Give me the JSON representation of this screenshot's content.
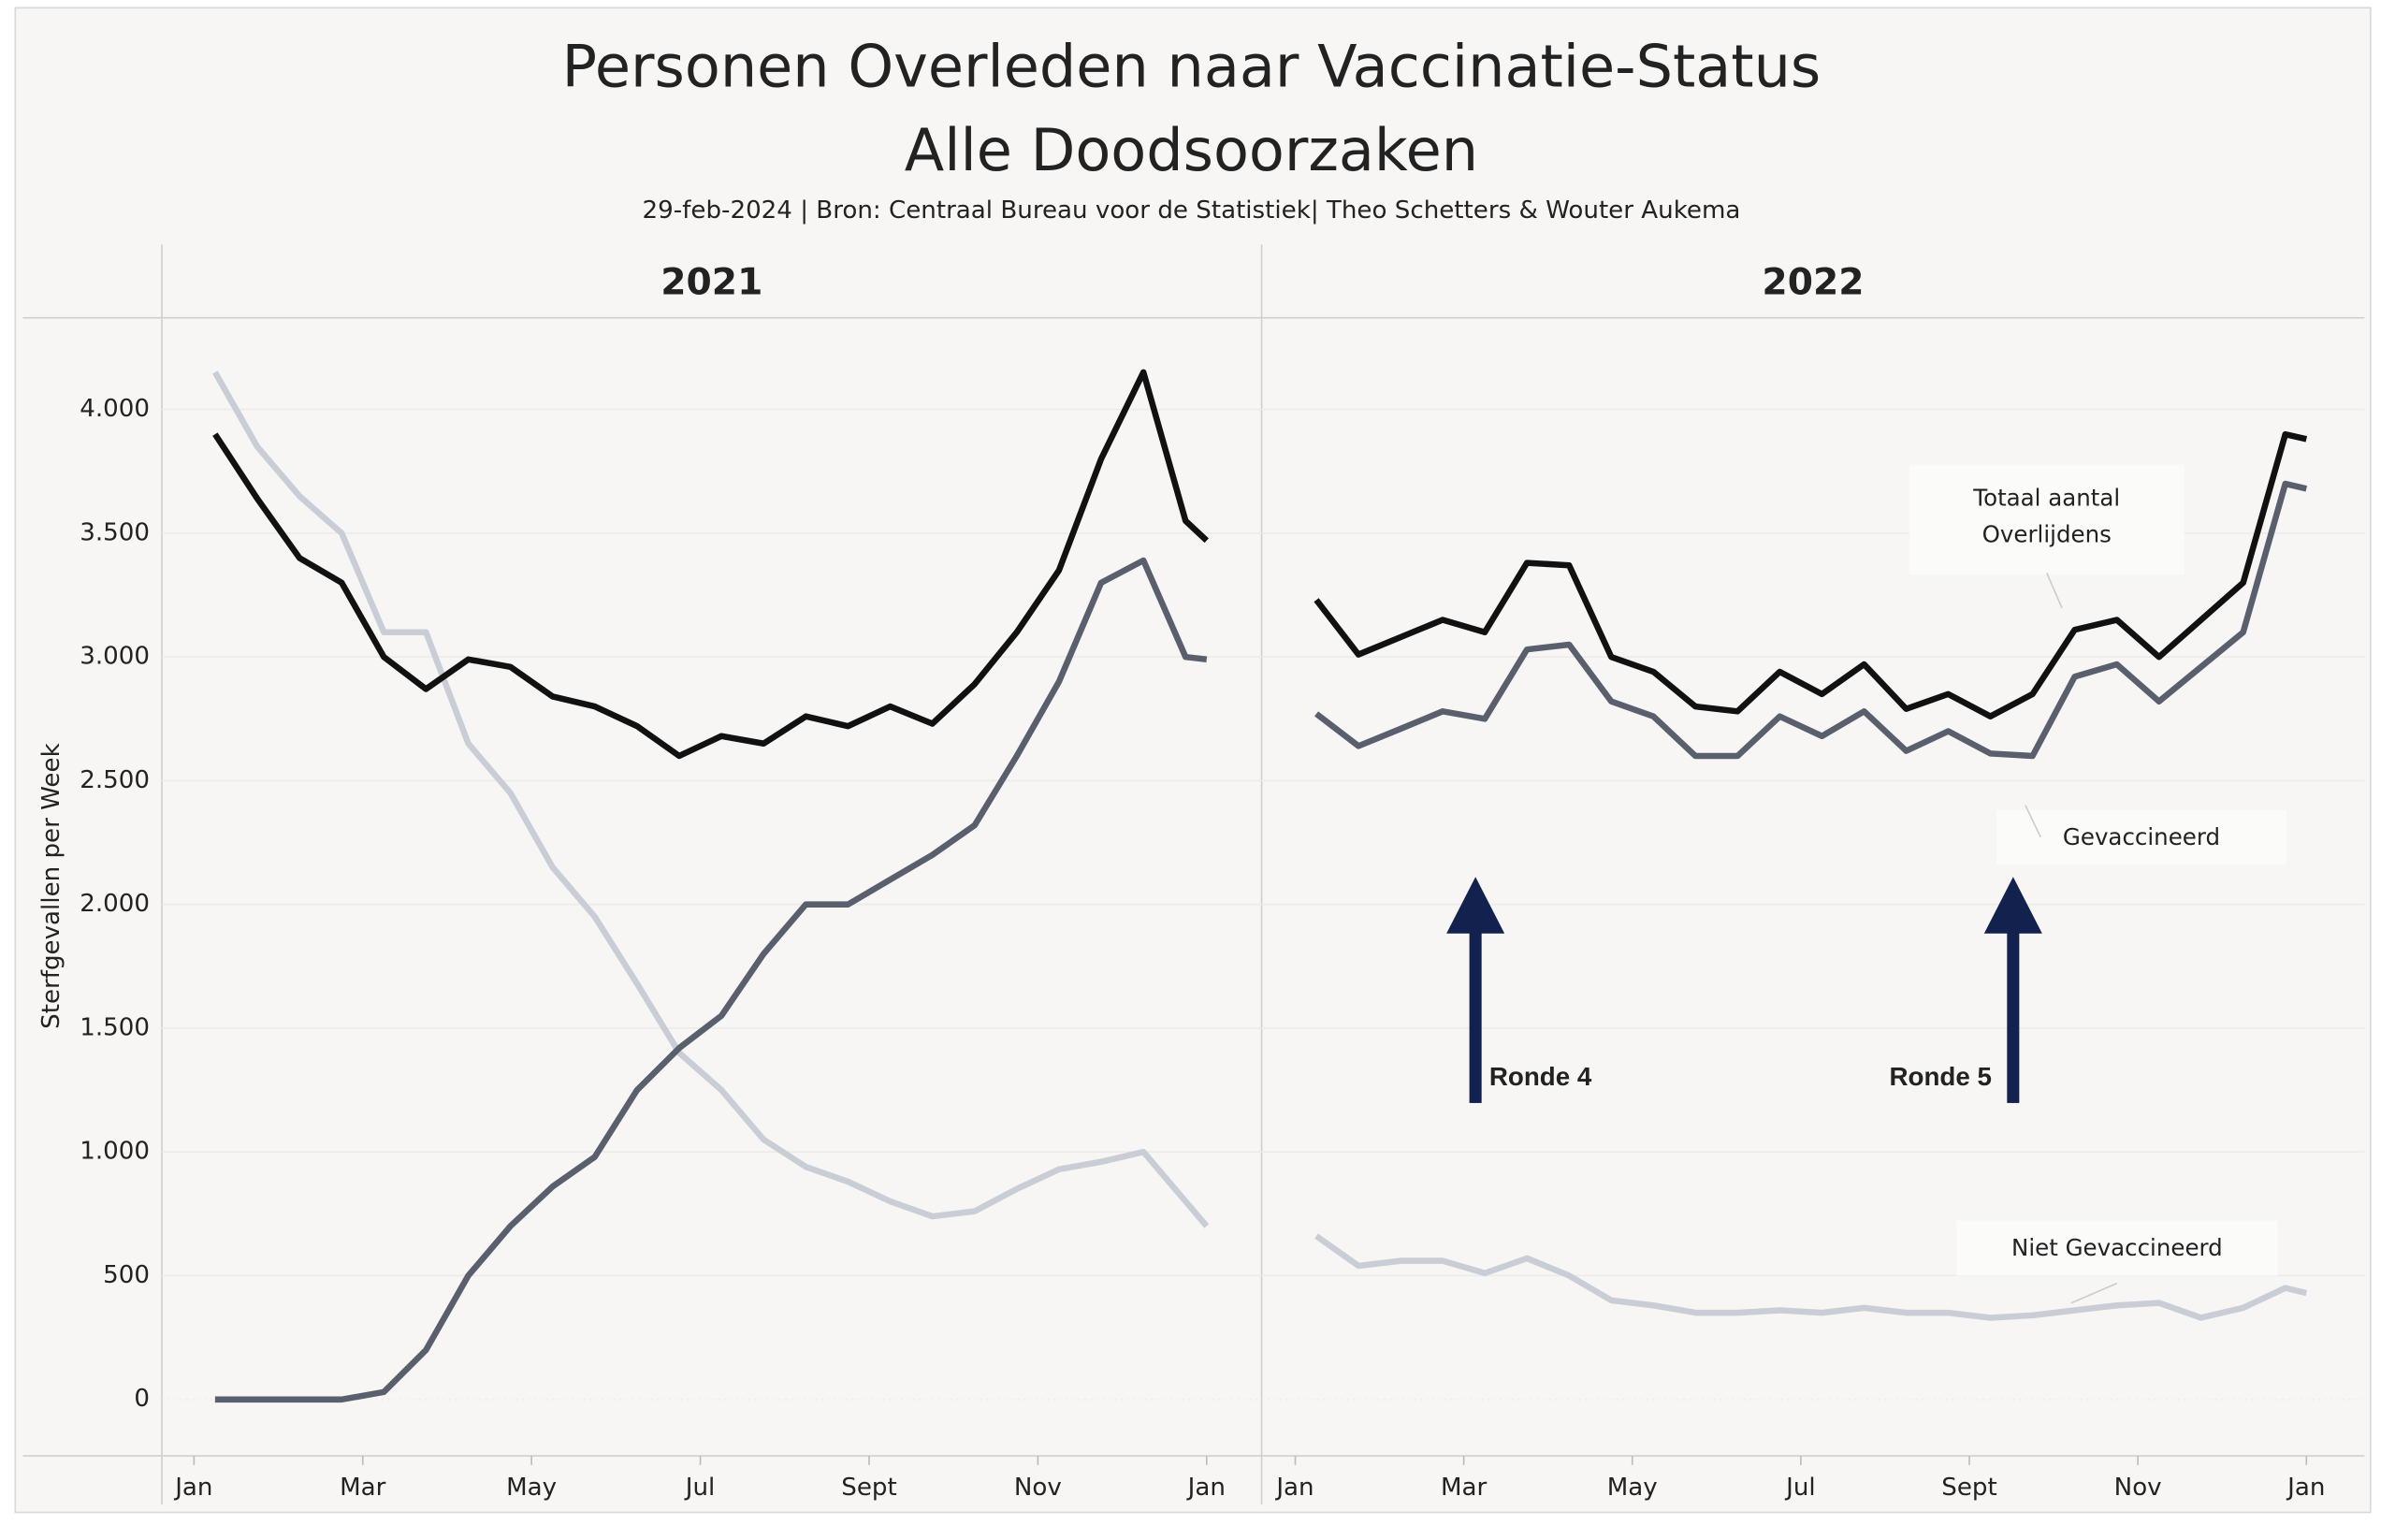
{
  "header": {
    "title": [
      "Personen Overleden naar Vaccinatie-Status",
      "Alle Doodsoorzaken"
    ],
    "subtitle": "29-feb-2024 | Bron: Centraal Bureau voor de Statistiek| Theo Schetters & Wouter Aukema",
    "y_label": "Sterfgevallen per Week"
  },
  "chart_data": [
    {
      "type": "line",
      "title": "2021",
      "x": [
        0.25,
        0.75,
        1.25,
        1.75,
        2.25,
        2.75,
        3.25,
        3.75,
        4.25,
        4.75,
        5.25,
        5.75,
        6.25,
        6.75,
        7.25,
        7.75,
        8.25,
        8.75,
        9.25,
        9.75,
        10.25,
        10.75,
        11.25,
        11.75,
        12
      ],
      "xlim": [
        0,
        12
      ],
      "xticks": [
        {
          "value": 0,
          "label": "Jan"
        },
        {
          "value": 2,
          "label": "Mar"
        },
        {
          "value": 4,
          "label": "May"
        },
        {
          "value": 6,
          "label": "Jul"
        },
        {
          "value": 8,
          "label": "Sept"
        },
        {
          "value": 10,
          "label": "Nov"
        },
        {
          "value": 12,
          "label": "Jan"
        }
      ],
      "ylim": [
        -228,
        4370
      ],
      "yticks": [
        0,
        500,
        {
          "value": 1000,
          "label": "1.000"
        },
        {
          "value": 1500,
          "label": "1.500"
        },
        {
          "value": 2000,
          "label": "2.000"
        },
        {
          "value": 2500,
          "label": "2.500"
        },
        {
          "value": 3000,
          "label": "3.000"
        },
        {
          "value": 3500,
          "label": "3.500"
        },
        {
          "value": 4000,
          "label": "4.000"
        }
      ],
      "series": [
        {
          "name": "Niet Gevaccineerd",
          "color": "#c9cdd6",
          "values": [
            4150,
            3850,
            3650,
            3500,
            3100,
            3100,
            2650,
            2450,
            2150,
            1950,
            1680,
            1400,
            1250,
            1050,
            940,
            880,
            800,
            740,
            760,
            850,
            930,
            960,
            1000,
            800,
            700
          ]
        },
        {
          "name": "Gevaccineerd",
          "color": "#5a5f6e",
          "values": [
            0,
            0,
            0,
            0,
            30,
            200,
            500,
            700,
            860,
            980,
            1250,
            1420,
            1550,
            1800,
            2000,
            2000,
            2100,
            2200,
            2320,
            2600,
            2900,
            3300,
            3390,
            3000,
            2990
          ]
        },
        {
          "name": "Totaal aantal Overlijdens",
          "color": "#111111",
          "values": [
            3900,
            3640,
            3400,
            3300,
            3000,
            2870,
            2990,
            2960,
            2840,
            2800,
            2720,
            2600,
            2680,
            2650,
            2760,
            2720,
            2800,
            2730,
            2890,
            3100,
            3350,
            3800,
            4150,
            3550,
            3470
          ]
        }
      ]
    },
    {
      "type": "line",
      "title": "2022",
      "x": [
        0.25,
        0.75,
        1.25,
        1.75,
        2.25,
        2.75,
        3.25,
        3.75,
        4.25,
        4.75,
        5.25,
        5.75,
        6.25,
        6.75,
        7.25,
        7.75,
        8.25,
        8.75,
        9.25,
        9.75,
        10.25,
        10.75,
        11.25,
        11.75,
        12
      ],
      "xlim": [
        0,
        12
      ],
      "xticks": [
        {
          "value": 0,
          "label": "Jan"
        },
        {
          "value": 2,
          "label": "Mar"
        },
        {
          "value": 4,
          "label": "May"
        },
        {
          "value": 6,
          "label": "Jul"
        },
        {
          "value": 8,
          "label": "Sept"
        },
        {
          "value": 10,
          "label": "Nov"
        },
        {
          "value": 12,
          "label": "Jan"
        }
      ],
      "ylim": [
        -228,
        4370
      ],
      "yticks": [
        0,
        500,
        1000,
        1500,
        2000,
        2500,
        3000,
        3500,
        4000
      ],
      "series": [
        {
          "name": "Niet Gevaccineerd",
          "color": "#c9cdd6",
          "values": [
            660,
            540,
            560,
            560,
            510,
            570,
            500,
            400,
            380,
            350,
            350,
            360,
            350,
            370,
            350,
            350,
            330,
            340,
            360,
            380,
            390,
            330,
            370,
            450,
            430
          ]
        },
        {
          "name": "Gevaccineerd",
          "color": "#5a5f6e",
          "values": [
            2770,
            2640,
            2710,
            2780,
            2750,
            3030,
            3050,
            2820,
            2760,
            2600,
            2600,
            2760,
            2680,
            2780,
            2620,
            2700,
            2610,
            2600,
            2920,
            2970,
            2820,
            2960,
            3100,
            3700,
            3680
          ]
        },
        {
          "name": "Totaal aantal Overlijdens",
          "color": "#111111",
          "values": [
            3230,
            3010,
            3080,
            3150,
            3100,
            3380,
            3370,
            3000,
            2940,
            2800,
            2780,
            2940,
            2850,
            2970,
            2790,
            2850,
            2760,
            2850,
            3110,
            3150,
            3000,
            3150,
            3300,
            3900,
            3880
          ]
        }
      ],
      "annotations": [
        "Ronde 4",
        "Ronde 5"
      ]
    }
  ]
}
